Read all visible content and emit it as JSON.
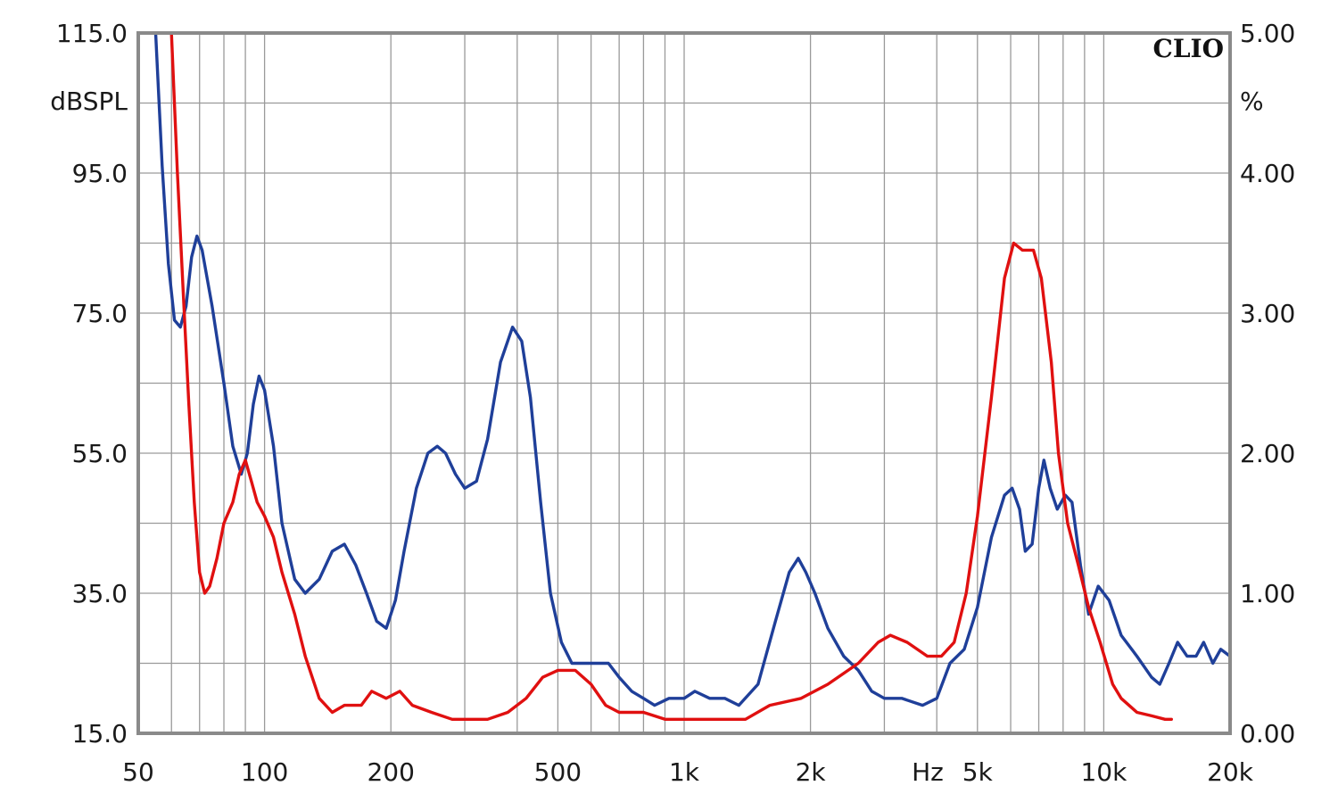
{
  "chart_data": {
    "type": "line",
    "brand_label": "CLIO",
    "x_scale": "log",
    "xlim": [
      50,
      20000
    ],
    "x_ticks": [
      50,
      100,
      200,
      500,
      1000,
      2000,
      5000,
      10000,
      20000
    ],
    "x_tick_labels": [
      "50",
      "100",
      "200",
      "500",
      "1k",
      "2k",
      "5k",
      "10k",
      "20k"
    ],
    "x_unit_label": "Hz",
    "y_left": {
      "unit_label": "dBSPL",
      "ylim": [
        15,
        115
      ],
      "ticks": [
        115,
        95,
        75,
        55,
        35,
        15
      ],
      "tick_labels": [
        "115.0",
        "95.0",
        "75.0",
        "55.0",
        "35.0",
        "15.0"
      ]
    },
    "y_right": {
      "unit_label": "%",
      "ylim": [
        0,
        5
      ],
      "ticks": [
        5,
        4,
        3,
        2,
        1,
        0
      ],
      "tick_labels": [
        "5.00",
        "4.00",
        "3.00",
        "2.00",
        "1.00",
        "0.00"
      ]
    },
    "grid": true,
    "colors": {
      "frame": "#8a8a8a",
      "grid": "#9a9a9a",
      "background": "#ffffff"
    },
    "series": [
      {
        "color": "#1f3f99",
        "axis": "left",
        "points": [
          [
            55,
            115
          ],
          [
            57,
            96
          ],
          [
            59,
            82
          ],
          [
            61,
            74
          ],
          [
            63,
            73
          ],
          [
            65,
            76
          ],
          [
            67,
            83
          ],
          [
            69,
            86
          ],
          [
            71,
            84
          ],
          [
            75,
            76
          ],
          [
            80,
            65
          ],
          [
            84,
            56
          ],
          [
            88,
            52
          ],
          [
            91,
            55
          ],
          [
            94,
            62
          ],
          [
            97,
            66
          ],
          [
            100,
            64
          ],
          [
            105,
            56
          ],
          [
            110,
            45
          ],
          [
            118,
            37
          ],
          [
            125,
            35
          ],
          [
            135,
            37
          ],
          [
            145,
            41
          ],
          [
            155,
            42
          ],
          [
            165,
            39
          ],
          [
            175,
            35
          ],
          [
            185,
            31
          ],
          [
            195,
            30
          ],
          [
            205,
            34
          ],
          [
            215,
            41
          ],
          [
            230,
            50
          ],
          [
            245,
            55
          ],
          [
            258,
            56
          ],
          [
            270,
            55
          ],
          [
            285,
            52
          ],
          [
            300,
            50
          ],
          [
            320,
            51
          ],
          [
            340,
            57
          ],
          [
            365,
            68
          ],
          [
            390,
            73
          ],
          [
            410,
            71
          ],
          [
            430,
            63
          ],
          [
            455,
            48
          ],
          [
            480,
            35
          ],
          [
            510,
            28
          ],
          [
            540,
            25
          ],
          [
            580,
            25
          ],
          [
            620,
            25
          ],
          [
            660,
            25
          ],
          [
            700,
            23
          ],
          [
            750,
            21
          ],
          [
            800,
            20
          ],
          [
            850,
            19
          ],
          [
            920,
            20
          ],
          [
            1000,
            20
          ],
          [
            1060,
            21
          ],
          [
            1150,
            20
          ],
          [
            1250,
            20
          ],
          [
            1350,
            19
          ],
          [
            1500,
            22
          ],
          [
            1650,
            31
          ],
          [
            1780,
            38
          ],
          [
            1870,
            40
          ],
          [
            1950,
            38
          ],
          [
            2050,
            35
          ],
          [
            2200,
            30
          ],
          [
            2400,
            26
          ],
          [
            2600,
            24
          ],
          [
            2800,
            21
          ],
          [
            3000,
            20
          ],
          [
            3300,
            20
          ],
          [
            3700,
            19
          ],
          [
            4000,
            20
          ],
          [
            4300,
            25
          ],
          [
            4650,
            27
          ],
          [
            5000,
            33
          ],
          [
            5400,
            43
          ],
          [
            5800,
            49
          ],
          [
            6050,
            50
          ],
          [
            6300,
            47
          ],
          [
            6500,
            41
          ],
          [
            6750,
            42
          ],
          [
            7000,
            50
          ],
          [
            7200,
            54
          ],
          [
            7450,
            50
          ],
          [
            7750,
            47
          ],
          [
            8100,
            49
          ],
          [
            8400,
            48
          ],
          [
            8800,
            39
          ],
          [
            9200,
            32
          ],
          [
            9700,
            36
          ],
          [
            10300,
            34
          ],
          [
            11000,
            29
          ],
          [
            12000,
            26
          ],
          [
            13000,
            23
          ],
          [
            13600,
            22
          ],
          [
            14300,
            25
          ],
          [
            15000,
            28
          ],
          [
            15800,
            26
          ],
          [
            16600,
            26
          ],
          [
            17300,
            28
          ],
          [
            18200,
            25
          ],
          [
            19000,
            27
          ],
          [
            20000,
            26
          ]
        ]
      },
      {
        "color": "#e01010",
        "axis": "left",
        "points": [
          [
            60,
            115
          ],
          [
            62,
            95
          ],
          [
            64,
            78
          ],
          [
            66,
            62
          ],
          [
            68,
            48
          ],
          [
            70,
            38
          ],
          [
            72,
            35
          ],
          [
            74,
            36
          ],
          [
            77,
            40
          ],
          [
            80,
            45
          ],
          [
            84,
            48
          ],
          [
            87,
            52
          ],
          [
            90,
            54
          ],
          [
            93,
            51
          ],
          [
            96,
            48
          ],
          [
            100,
            46
          ],
          [
            105,
            43
          ],
          [
            110,
            38
          ],
          [
            118,
            32
          ],
          [
            125,
            26
          ],
          [
            135,
            20
          ],
          [
            145,
            18
          ],
          [
            155,
            19
          ],
          [
            170,
            19
          ],
          [
            180,
            21
          ],
          [
            195,
            20
          ],
          [
            210,
            21
          ],
          [
            225,
            19
          ],
          [
            250,
            18
          ],
          [
            280,
            17
          ],
          [
            310,
            17
          ],
          [
            340,
            17
          ],
          [
            380,
            18
          ],
          [
            420,
            20
          ],
          [
            460,
            23
          ],
          [
            500,
            24
          ],
          [
            550,
            24
          ],
          [
            600,
            22
          ],
          [
            650,
            19
          ],
          [
            700,
            18
          ],
          [
            800,
            18
          ],
          [
            900,
            17
          ],
          [
            1000,
            17
          ],
          [
            1200,
            17
          ],
          [
            1400,
            17
          ],
          [
            1600,
            19
          ],
          [
            1900,
            20
          ],
          [
            2200,
            22
          ],
          [
            2600,
            25
          ],
          [
            2900,
            28
          ],
          [
            3100,
            29
          ],
          [
            3400,
            28
          ],
          [
            3800,
            26
          ],
          [
            4100,
            26
          ],
          [
            4400,
            28
          ],
          [
            4700,
            35
          ],
          [
            5000,
            46
          ],
          [
            5400,
            63
          ],
          [
            5800,
            80
          ],
          [
            6100,
            85
          ],
          [
            6400,
            84
          ],
          [
            6800,
            84
          ],
          [
            7100,
            80
          ],
          [
            7500,
            68
          ],
          [
            7800,
            55
          ],
          [
            8200,
            45
          ],
          [
            8700,
            39
          ],
          [
            9200,
            33
          ],
          [
            9800,
            28
          ],
          [
            10500,
            22
          ],
          [
            11000,
            20
          ],
          [
            12000,
            18
          ],
          [
            13000,
            17.5
          ],
          [
            14000,
            17
          ],
          [
            14500,
            17
          ]
        ]
      }
    ]
  }
}
